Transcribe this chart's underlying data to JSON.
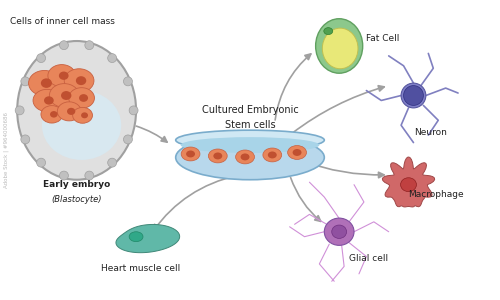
{
  "background_color": "#ffffff",
  "title_label": "Cells of inner cell mass",
  "center_label_line1": "Cultured Embryonic",
  "center_label_line2": "Stem cells",
  "cell_types": [
    "Fat Cell",
    "Neuron",
    "Macrophage",
    "Glial cell",
    "Heart muscle cell"
  ],
  "early_embryo_label1": "Early embryo",
  "early_embryo_label2": "(Blastocyte)",
  "colors": {
    "blastocyte_outer": "#b0b0b0",
    "blastocyte_inner_cells": "#e8855a",
    "blastocyte_cavity": "#dce8f0",
    "dish_top": "#a8d4e8",
    "dish_body": "#c8e4f0",
    "dish_bottom": "#7ab8d4",
    "stem_cell_color": "#e8855a",
    "fat_cell_outer": "#7ab87a",
    "fat_cell_inner": "#e8e87a",
    "neuron_color": "#8080c0",
    "macrophage_color": "#d06060",
    "glial_color": "#c080c0",
    "heart_color": "#60b0a0",
    "arrow_color": "#a0a0a0",
    "text_color": "#333333",
    "label_color": "#222222"
  },
  "figsize": [
    5.0,
    3.0
  ],
  "dpi": 100
}
